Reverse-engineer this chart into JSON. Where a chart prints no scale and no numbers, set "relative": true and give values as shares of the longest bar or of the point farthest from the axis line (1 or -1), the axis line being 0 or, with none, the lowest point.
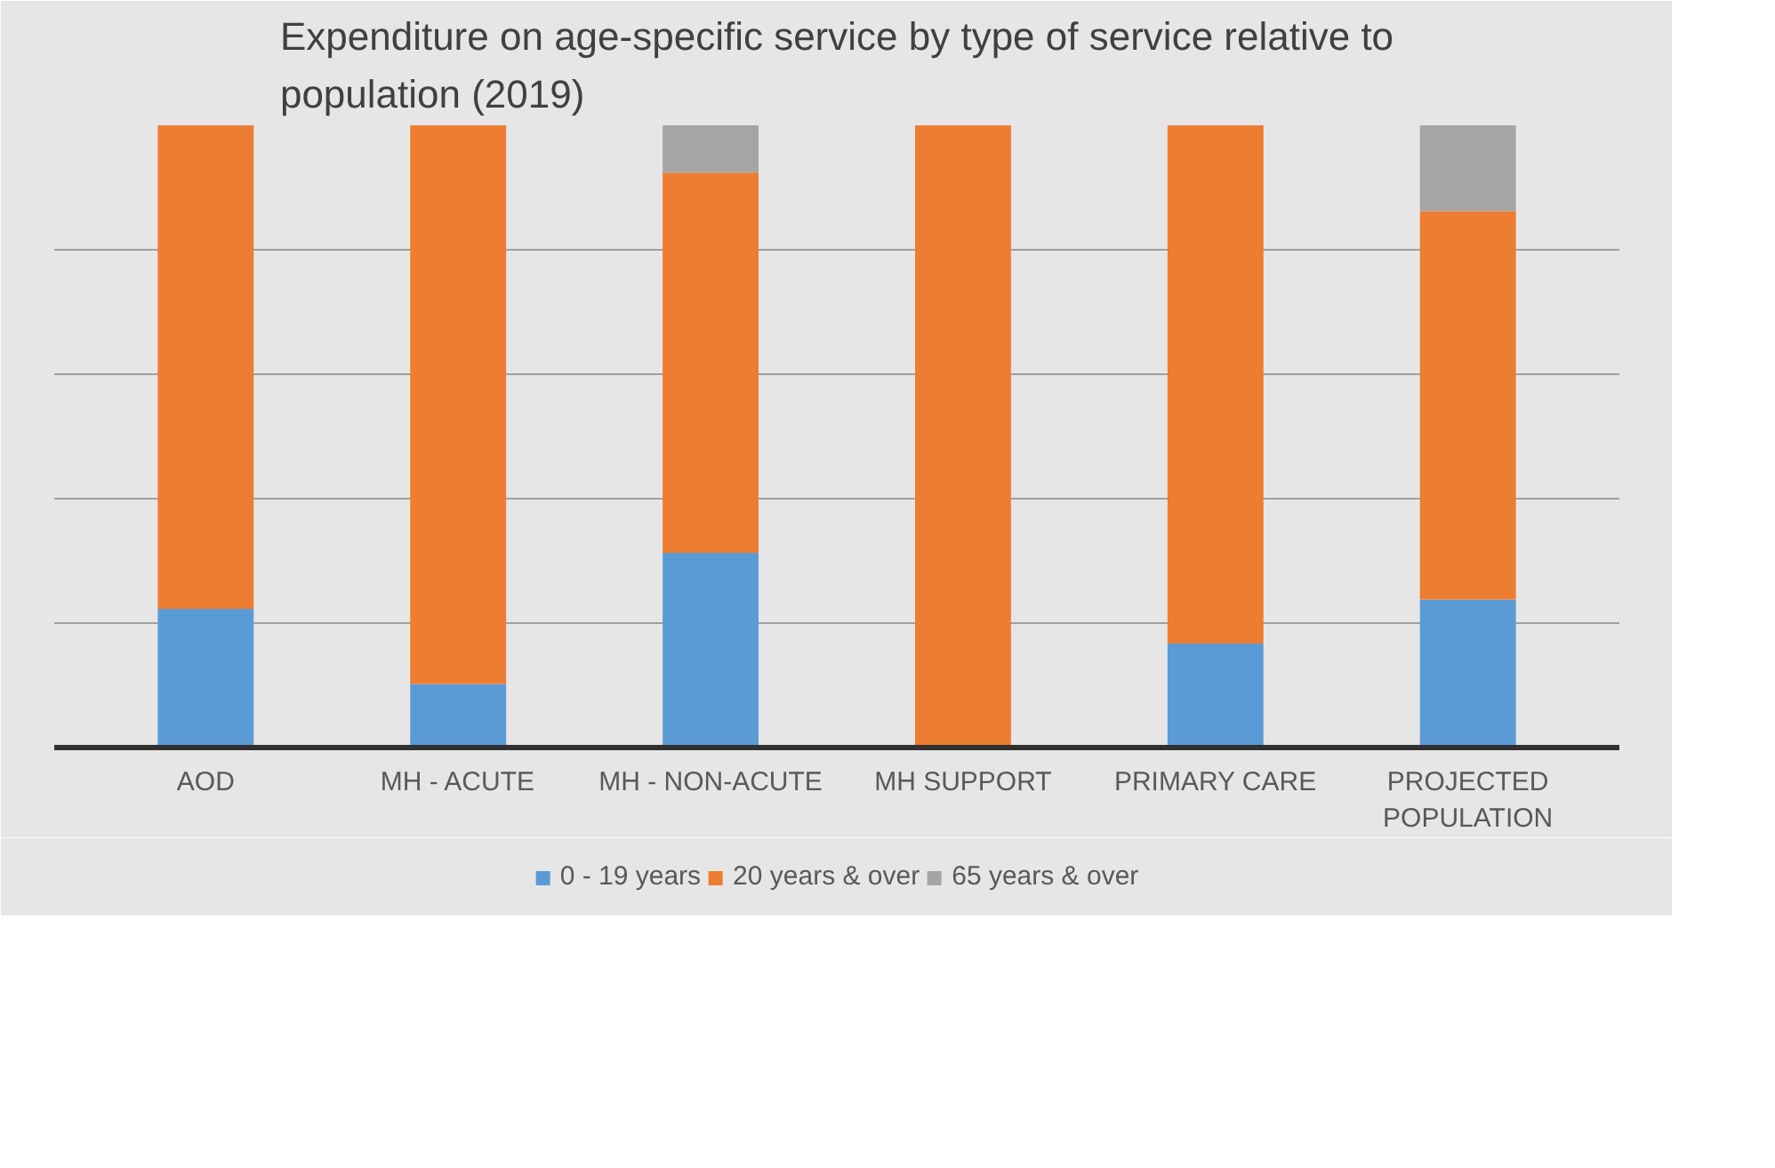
{
  "chart_data": {
    "type": "bar",
    "title": "Expenditure on age-specific service by type of service relative to population (2019)",
    "categories": [
      "AOD",
      "MH - ACUTE",
      "MH - NON-ACUTE",
      "MH SUPPORT",
      "PRIMARY CARE",
      "PROJECTED POPULATION"
    ],
    "stacked": true,
    "relative": true,
    "grid": "y",
    "legend": "bottom",
    "series": [
      {
        "name": "0 - 19 years",
        "color": "#5b9bd5",
        "values": [
          0.223,
          0.102,
          0.313,
          0,
          0.167,
          0.238
        ]
      },
      {
        "name": "20 years & over",
        "color": "#ed7d31",
        "values": [
          0.777,
          0.898,
          0.611,
          1.0,
          0.833,
          0.624
        ]
      },
      {
        "name": "65 years & over",
        "color": "#a5a5a5",
        "values": [
          0,
          0,
          0.076,
          0,
          0,
          0.138
        ]
      }
    ]
  }
}
